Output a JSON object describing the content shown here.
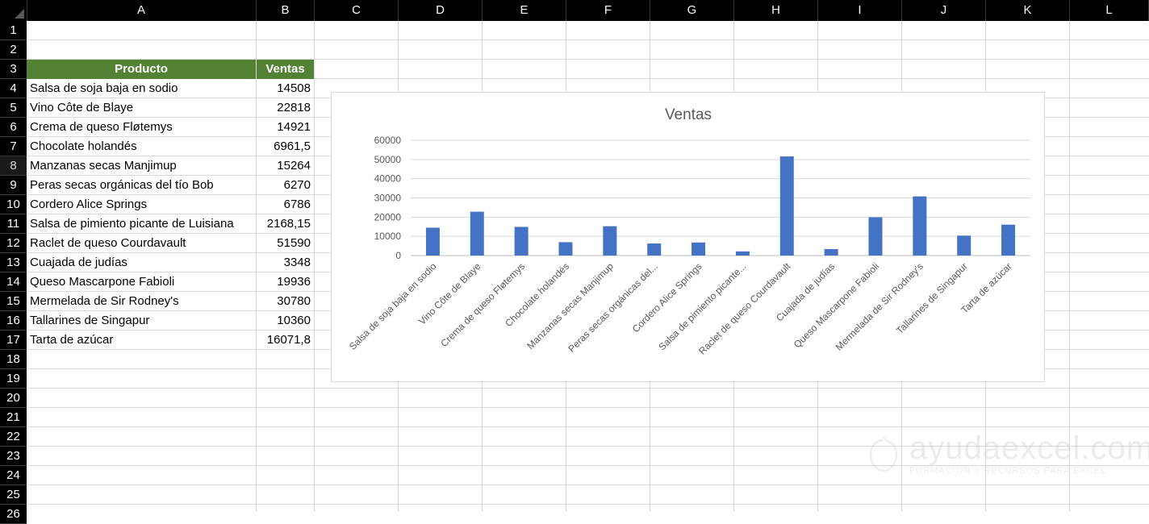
{
  "spreadsheet": {
    "columns": [
      "A",
      "B",
      "C",
      "D",
      "E",
      "F",
      "G",
      "H",
      "I",
      "J",
      "K",
      "L"
    ],
    "rows": [
      "1",
      "2",
      "3",
      "4",
      "5",
      "6",
      "7",
      "8",
      "9",
      "10",
      "11",
      "12",
      "13",
      "14",
      "15",
      "16",
      "17",
      "18",
      "19",
      "20",
      "21",
      "22",
      "23",
      "24",
      "25",
      "26"
    ],
    "selected_row": "8"
  },
  "table": {
    "header_producto": "Producto",
    "header_ventas": "Ventas",
    "rows": [
      {
        "producto": "Salsa de soja baja en sodio",
        "ventas": "14508"
      },
      {
        "producto": "Vino Côte de Blaye",
        "ventas": "22818"
      },
      {
        "producto": "Crema de queso Fløtemys",
        "ventas": "14921"
      },
      {
        "producto": "Chocolate holandés",
        "ventas": "6961,5"
      },
      {
        "producto": "Manzanas secas Manjimup",
        "ventas": "15264"
      },
      {
        "producto": "Peras secas orgánicas del tío Bob",
        "ventas": "6270"
      },
      {
        "producto": "Cordero Alice Springs",
        "ventas": "6786"
      },
      {
        "producto": "Salsa de pimiento picante de Luisiana",
        "ventas": "2168,15"
      },
      {
        "producto": "Raclet de queso Courdavault",
        "ventas": "51590"
      },
      {
        "producto": "Cuajada de judías",
        "ventas": "3348"
      },
      {
        "producto": "Queso Mascarpone Fabioli",
        "ventas": "19936"
      },
      {
        "producto": "Mermelada de Sir Rodney's",
        "ventas": "30780"
      },
      {
        "producto": "Tallarines de Singapur",
        "ventas": "10360"
      },
      {
        "producto": "Tarta de azúcar",
        "ventas": "16071,8"
      }
    ],
    "header_color": "#548235"
  },
  "chart_data": {
    "type": "bar",
    "title": "Ventas",
    "categories": [
      "Salsa de soja baja en sodio",
      "Vino Côte de Blaye",
      "Crema de queso Fløtemys",
      "Chocolate holandés",
      "Manzanas secas Manjimup",
      "Peras secas orgánicas del...",
      "Cordero Alice Springs",
      "Salsa de pimiento picante...",
      "Raclet de queso Courdavault",
      "Cuajada de judías",
      "Queso Mascarpone Fabioli",
      "Mermelada de Sir Rodney's",
      "Tallarines de Singapur",
      "Tarta de azúcar"
    ],
    "values": [
      14508,
      22818,
      14921,
      6961.5,
      15264,
      6270,
      6786,
      2168.15,
      51590,
      3348,
      19936,
      30780,
      10360,
      16071.8
    ],
    "yticks": [
      "0",
      "10000",
      "20000",
      "30000",
      "40000",
      "50000",
      "60000"
    ],
    "ylim": [
      0,
      60000
    ],
    "grid": true,
    "bar_color": "#4472c4",
    "xlabel": "",
    "ylabel": ""
  },
  "watermark": {
    "brand": "ayudaexcel.com",
    "tagline": "FORMACIÓN Y RECURSOS PARA EXCEL"
  }
}
